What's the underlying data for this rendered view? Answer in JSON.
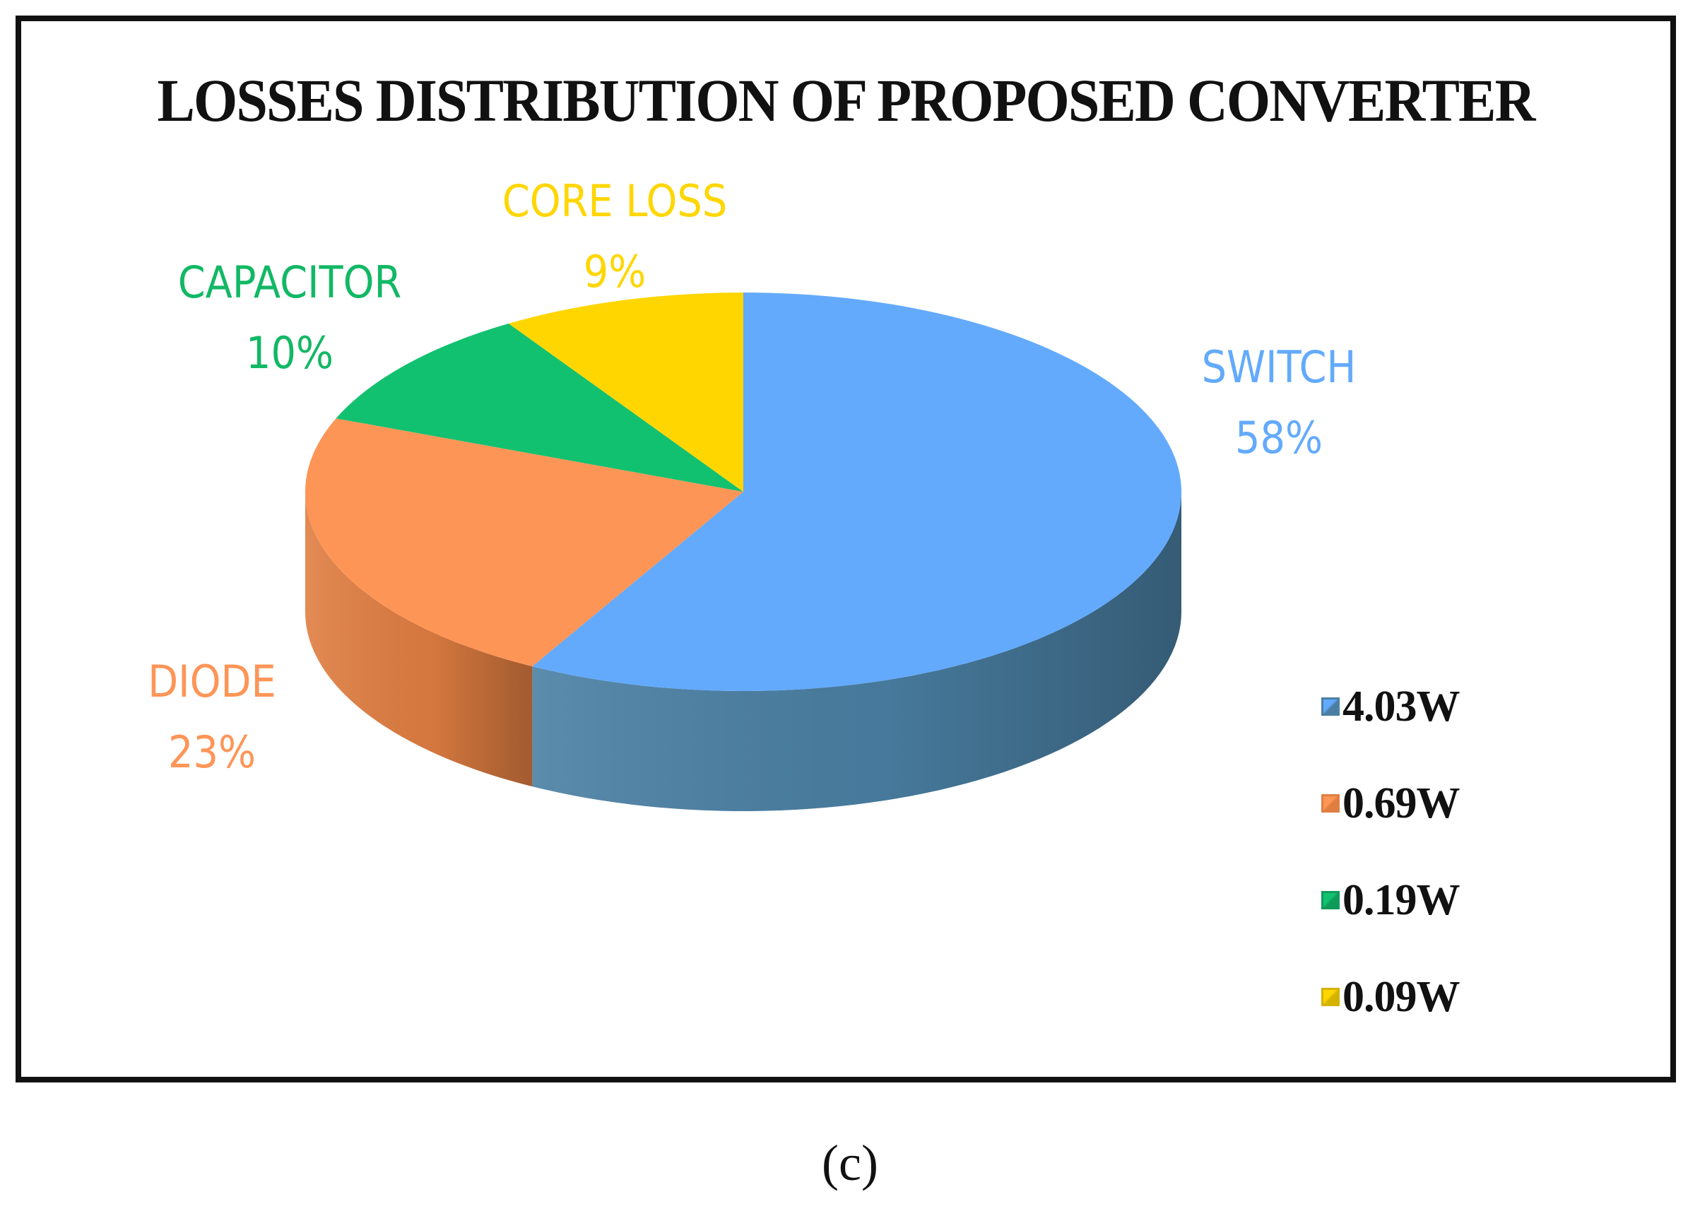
{
  "caption": "(c)",
  "chart_data": {
    "type": "pie",
    "title": "LOSSES DISTRIBUTION OF PROPOSED CONVERTER",
    "slices": [
      {
        "label": "SWITCH",
        "percent_label": "58%",
        "value": 58,
        "legend": "4.03W",
        "color": "#63aafc",
        "side_color": "#4a7fa3",
        "text_color": "#63aafc"
      },
      {
        "label": "DIODE",
        "percent_label": "23%",
        "value": 23,
        "legend": "0.69W",
        "color": "#fd9557",
        "side_color": "#e07e42",
        "text_color": "#fd9557"
      },
      {
        "label": "CAPACITOR",
        "percent_label": "10%",
        "value": 10,
        "legend": "0.19W",
        "color": "#12c16f",
        "side_color": "#0e9b59",
        "text_color": "#12b865"
      },
      {
        "label": "CORE LOSS",
        "percent_label": "9%",
        "value": 9,
        "legend": "0.09W",
        "color": "#ffd600",
        "side_color": "#d4b200",
        "text_color": "#ffd600"
      }
    ],
    "legend_position": "right",
    "style": "3d"
  }
}
